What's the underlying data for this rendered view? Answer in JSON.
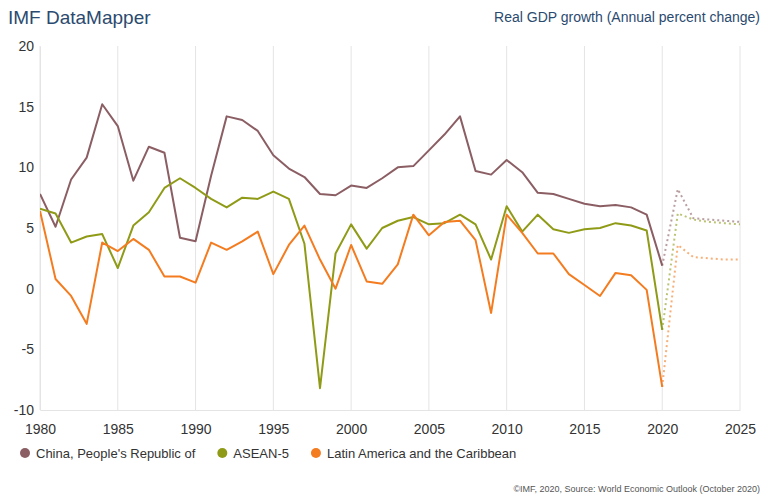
{
  "chart_data": {
    "type": "line",
    "title": "IMF DataMapper",
    "subtitle": "Real GDP growth (Annual percent change)",
    "source": "©IMF, 2020, Source: World Economic Outlook (October 2020)",
    "x": [
      1980,
      1981,
      1982,
      1983,
      1984,
      1985,
      1986,
      1987,
      1988,
      1989,
      1990,
      1991,
      1992,
      1993,
      1994,
      1995,
      1996,
      1997,
      1998,
      1999,
      2000,
      2001,
      2002,
      2003,
      2004,
      2005,
      2006,
      2007,
      2008,
      2009,
      2010,
      2011,
      2012,
      2013,
      2014,
      2015,
      2016,
      2017,
      2018,
      2019,
      2020,
      2021,
      2022,
      2023,
      2024,
      2025
    ],
    "xlim": [
      1980,
      2025
    ],
    "xticks": [
      1980,
      1985,
      1990,
      1995,
      2000,
      2005,
      2010,
      2015,
      2020,
      2025
    ],
    "ylim": [
      -10,
      20
    ],
    "yticks": [
      -10,
      -5,
      0,
      5,
      10,
      15,
      20
    ],
    "grid": true,
    "legend": "bottom",
    "series": [
      {
        "name": "China, People's Republic of",
        "color": "#8b5e64",
        "line_style": "solid",
        "values": [
          7.8,
          5.1,
          9.0,
          10.8,
          15.2,
          13.4,
          8.9,
          11.7,
          11.2,
          4.2,
          3.9,
          9.3,
          14.2,
          13.9,
          13.0,
          11.0,
          9.9,
          9.2,
          7.8,
          7.7,
          8.5,
          8.3,
          9.1,
          10.0,
          10.1,
          11.4,
          12.7,
          14.2,
          9.7,
          9.4,
          10.6,
          9.6,
          7.9,
          7.8,
          7.4,
          7.0,
          6.8,
          6.9,
          6.7,
          6.1,
          1.9,
          null,
          null,
          null,
          null,
          null
        ]
      },
      {
        "name": "ASEAN-5",
        "color": "#8f9b17",
        "line_style": "solid",
        "values": [
          6.6,
          6.2,
          3.8,
          4.3,
          4.5,
          1.7,
          5.2,
          6.3,
          8.3,
          9.1,
          8.3,
          7.4,
          6.7,
          7.5,
          7.4,
          8.0,
          7.4,
          3.7,
          -8.2,
          2.9,
          5.3,
          3.3,
          5.0,
          5.6,
          5.9,
          5.3,
          5.4,
          6.1,
          5.3,
          2.4,
          6.8,
          4.7,
          6.1,
          4.9,
          4.6,
          4.9,
          5.0,
          5.4,
          5.2,
          4.8,
          -3.4,
          null,
          null,
          null,
          null,
          null
        ]
      },
      {
        "name": "Latin America and the Caribbean",
        "color": "#f47c20",
        "line_style": "solid",
        "values": [
          6.4,
          0.8,
          -0.6,
          -2.9,
          3.8,
          3.1,
          4.1,
          3.2,
          1.0,
          1.0,
          0.5,
          3.8,
          3.2,
          3.9,
          4.7,
          1.2,
          3.6,
          5.2,
          2.4,
          0.0,
          3.6,
          0.6,
          0.4,
          2.0,
          6.1,
          4.4,
          5.5,
          5.6,
          4.0,
          -2.0,
          6.1,
          4.6,
          2.9,
          2.9,
          1.2,
          0.3,
          -0.6,
          1.3,
          1.1,
          -0.1,
          -8.1,
          null,
          null,
          null,
          null,
          null
        ]
      },
      {
        "color": "#8b5e64",
        "line_style": "dotted",
        "values": [
          null,
          null,
          null,
          null,
          null,
          null,
          null,
          null,
          null,
          null,
          null,
          null,
          null,
          null,
          null,
          null,
          null,
          null,
          null,
          null,
          null,
          null,
          null,
          null,
          null,
          null,
          null,
          null,
          null,
          null,
          null,
          null,
          null,
          null,
          null,
          null,
          null,
          null,
          null,
          null,
          1.9,
          8.2,
          5.8,
          5.7,
          5.6,
          5.5
        ]
      },
      {
        "color": "#8f9b17",
        "line_style": "dotted",
        "values": [
          null,
          null,
          null,
          null,
          null,
          null,
          null,
          null,
          null,
          null,
          null,
          null,
          null,
          null,
          null,
          null,
          null,
          null,
          null,
          null,
          null,
          null,
          null,
          null,
          null,
          null,
          null,
          null,
          null,
          null,
          null,
          null,
          null,
          null,
          null,
          null,
          null,
          null,
          null,
          null,
          -3.4,
          6.2,
          5.7,
          5.5,
          5.4,
          5.3
        ]
      },
      {
        "color": "#f47c20",
        "line_style": "dotted",
        "values": [
          null,
          null,
          null,
          null,
          null,
          null,
          null,
          null,
          null,
          null,
          null,
          null,
          null,
          null,
          null,
          null,
          null,
          null,
          null,
          null,
          null,
          null,
          null,
          null,
          null,
          null,
          null,
          null,
          null,
          null,
          null,
          null,
          null,
          null,
          null,
          null,
          null,
          null,
          null,
          null,
          -8.1,
          3.6,
          2.6,
          2.5,
          2.4,
          2.4
        ]
      }
    ]
  }
}
